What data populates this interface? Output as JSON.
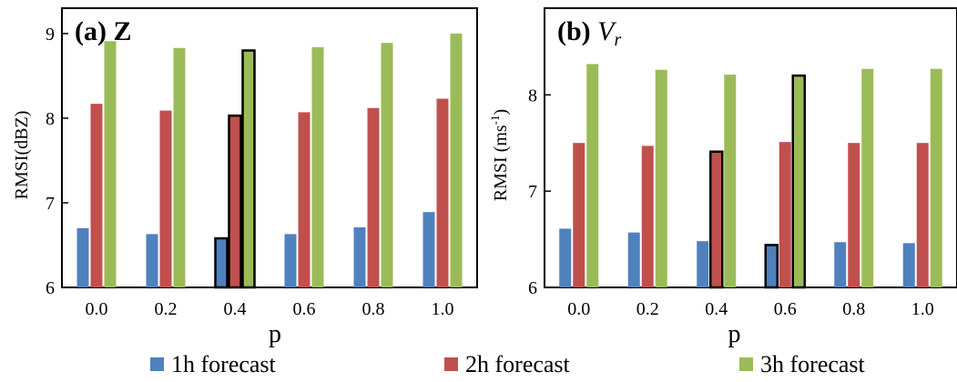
{
  "chart_data": [
    {
      "type": "bar",
      "title": "(a) Z",
      "title_letter": "(a)",
      "title_var": "Z",
      "xlabel": "p",
      "ylabel": "RMSI(dBZ)",
      "ylim": [
        6,
        9.3
      ],
      "yticks": [
        "6",
        "7",
        "8",
        "9"
      ],
      "categories": [
        "0.0",
        "0.2",
        "0.4",
        "0.6",
        "0.8",
        "1.0"
      ],
      "series": [
        {
          "name": "1h forecast",
          "color": "#4f81bd",
          "values": [
            6.7,
            6.63,
            6.58,
            6.63,
            6.71,
            6.89
          ]
        },
        {
          "name": "2h forecast",
          "color": "#c0504d",
          "values": [
            8.17,
            8.09,
            8.03,
            8.07,
            8.12,
            8.23
          ]
        },
        {
          "name": "3h forecast",
          "color": "#9bbb59",
          "values": [
            8.91,
            8.83,
            8.8,
            8.84,
            8.89,
            9.0
          ]
        }
      ],
      "highlighted_category": "0.4",
      "grid": false
    },
    {
      "type": "bar",
      "title": "(b) Vr",
      "title_letter": "(b)",
      "title_var": "V",
      "title_var_sub": "r",
      "xlabel": "p",
      "ylabel": "RMSI (ms",
      "ylabel_sup": "-1",
      "ylabel_end": ")",
      "ylim": [
        6,
        8.9
      ],
      "yticks": [
        "6",
        "7",
        "8"
      ],
      "categories": [
        "0.0",
        "0.2",
        "0.4",
        "0.6",
        "0.8",
        "1.0"
      ],
      "series": [
        {
          "name": "1h forecast",
          "color": "#4f81bd",
          "values": [
            6.61,
            6.57,
            6.48,
            6.44,
            6.47,
            6.46
          ]
        },
        {
          "name": "2h forecast",
          "color": "#c0504d",
          "values": [
            7.5,
            7.47,
            7.41,
            7.51,
            7.5,
            7.5
          ]
        },
        {
          "name": "3h forecast",
          "color": "#9bbb59",
          "values": [
            8.32,
            8.26,
            8.21,
            8.2,
            8.27,
            8.27
          ]
        }
      ],
      "highlighted_bars": [
        {
          "category": "0.4",
          "series": "2h forecast"
        },
        {
          "category": "0.6",
          "series": "1h forecast"
        },
        {
          "category": "0.6",
          "series": "3h forecast"
        }
      ],
      "grid": false
    }
  ],
  "legend": {
    "placement": "bottom",
    "items": [
      {
        "label": "1h forecast",
        "color": "#4f81bd"
      },
      {
        "label": "2h forecast",
        "color": "#c0504d"
      },
      {
        "label": "3h forecast",
        "color": "#9bbb59"
      }
    ]
  }
}
